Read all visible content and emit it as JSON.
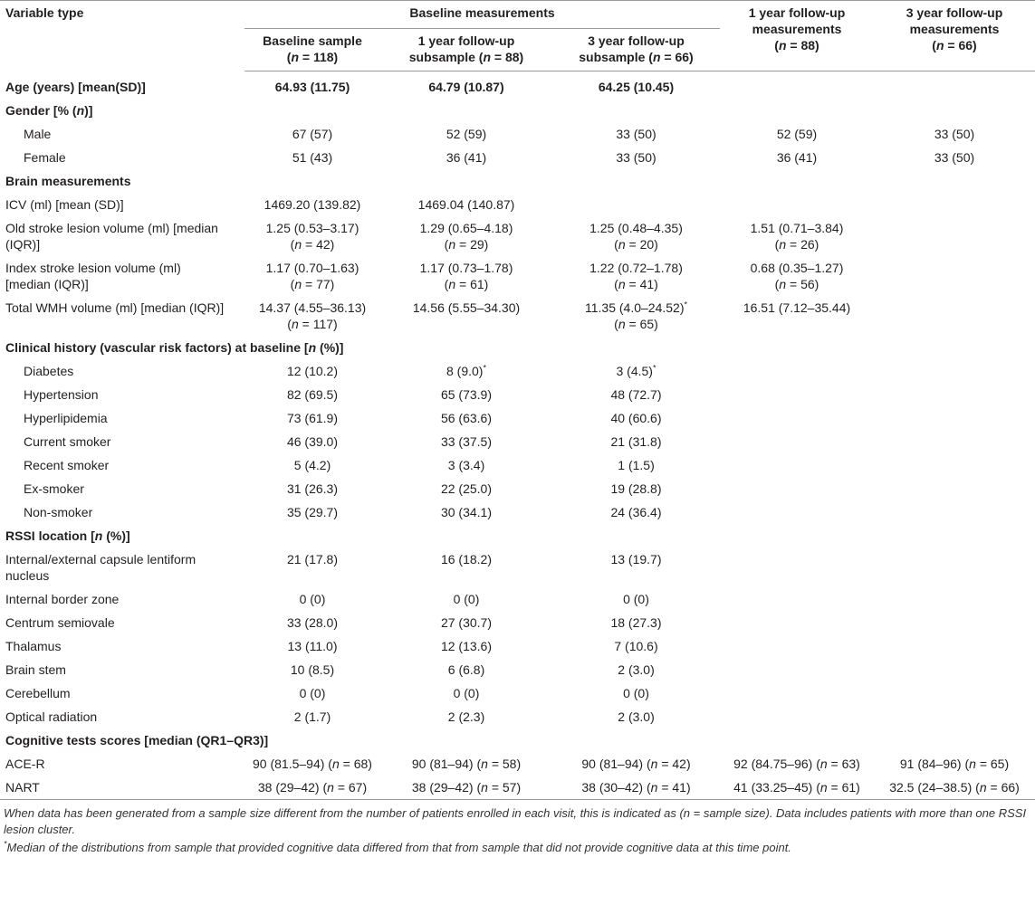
{
  "table": {
    "header": {
      "variable": "Variable type",
      "group": "Baseline measurements",
      "columns": [
        [
          "Baseline sample",
          "(n = 118)"
        ],
        [
          "1 year follow-up",
          "subsample (n = 88)"
        ],
        [
          "3 year follow-up",
          "subsample (n = 66)"
        ],
        [
          "1 year follow-up",
          "measurements",
          "(n = 88)"
        ],
        [
          "3 year follow-up",
          "measurements",
          "(n = 66)"
        ]
      ]
    },
    "sections": [
      {
        "title": "Age (years) [mean(SD)]",
        "values": [
          "64.93 (11.75)",
          "64.79 (10.87)",
          "64.25 (10.45)",
          null,
          null
        ],
        "indent": false,
        "rows": []
      },
      {
        "title": "Gender [% (n)]",
        "indent": true,
        "rows": [
          {
            "label": "Male",
            "values": [
              "67 (57)",
              "52 (59)",
              "33 (50)",
              "52 (59)",
              "33 (50)"
            ]
          },
          {
            "label": "Female",
            "values": [
              "51 (43)",
              "36 (41)",
              "33 (50)",
              "36 (41)",
              "33 (50)"
            ]
          }
        ]
      },
      {
        "title": "Brain measurements",
        "indent": false,
        "rows": [
          {
            "label": "ICV (ml) [mean (SD)]",
            "values": [
              "1469.20 (139.82)",
              "1469.04 (140.87)",
              null,
              null,
              null
            ]
          },
          {
            "label": [
              "Old stroke lesion volume (ml) [median",
              "(IQR)]"
            ],
            "values": [
              [
                "1.25 (0.53–3.17)",
                "(n = 42)"
              ],
              [
                "1.29 (0.65–4.18)",
                "(n = 29)"
              ],
              [
                "1.25 (0.48–4.35)",
                "(n = 20)"
              ],
              [
                "1.51 (0.71–3.84)",
                "(n = 26)"
              ],
              null
            ]
          },
          {
            "label": [
              "Index stroke lesion volume (ml)",
              "[median (IQR)]"
            ],
            "values": [
              [
                "1.17 (0.70–1.63)",
                "(n = 77)"
              ],
              [
                "1.17 (0.73–1.78)",
                "(n = 61)"
              ],
              [
                "1.22 (0.72–1.78)",
                "(n = 41)"
              ],
              [
                "0.68 (0.35–1.27)",
                "(n = 56)"
              ],
              null
            ]
          },
          {
            "label": "Total WMH volume (ml) [median (IQR)]",
            "values": [
              [
                "14.37 (4.55–36.13)",
                "(n = 117)"
              ],
              "14.56 (5.55–34.30)",
              [
                "11.35 (4.0–24.52)*",
                "(n = 65)"
              ],
              "16.51 (7.12–35.44)",
              null
            ]
          }
        ]
      },
      {
        "title": "Clinical history (vascular risk factors) at baseline [n (%)]",
        "indent": true,
        "rows": [
          {
            "label": "Diabetes",
            "values": [
              "12 (10.2)",
              "8 (9.0)*",
              "3 (4.5)*",
              null,
              null
            ]
          },
          {
            "label": "Hypertension",
            "values": [
              "82 (69.5)",
              "65 (73.9)",
              "48 (72.7)",
              null,
              null
            ]
          },
          {
            "label": "Hyperlipidemia",
            "values": [
              "73 (61.9)",
              "56 (63.6)",
              "40 (60.6)",
              null,
              null
            ]
          },
          {
            "label": "Current smoker",
            "values": [
              "46 (39.0)",
              "33 (37.5)",
              "21 (31.8)",
              null,
              null
            ]
          },
          {
            "label": "Recent smoker",
            "values": [
              "5 (4.2)",
              "3 (3.4)",
              "1 (1.5)",
              null,
              null
            ]
          },
          {
            "label": "Ex-smoker",
            "values": [
              "31 (26.3)",
              "22 (25.0)",
              "19 (28.8)",
              null,
              null
            ]
          },
          {
            "label": "Non-smoker",
            "values": [
              "35 (29.7)",
              "30 (34.1)",
              "24 (36.4)",
              null,
              null
            ]
          }
        ]
      },
      {
        "title": "RSSI location [n (%)]",
        "indent": false,
        "rows": [
          {
            "label": [
              "Internal/external capsule lentiform",
              "nucleus"
            ],
            "values": [
              "21 (17.8)",
              "16 (18.2)",
              "13 (19.7)",
              null,
              null
            ]
          },
          {
            "label": "Internal border zone",
            "values": [
              "0 (0)",
              "0 (0)",
              "0 (0)",
              null,
              null
            ]
          },
          {
            "label": "Centrum semiovale",
            "values": [
              "33 (28.0)",
              "27 (30.7)",
              "18 (27.3)",
              null,
              null
            ]
          },
          {
            "label": "Thalamus",
            "values": [
              "13 (11.0)",
              "12 (13.6)",
              "7 (10.6)",
              null,
              null
            ]
          },
          {
            "label": "Brain stem",
            "values": [
              "10 (8.5)",
              "6 (6.8)",
              "2 (3.0)",
              null,
              null
            ]
          },
          {
            "label": "Cerebellum",
            "values": [
              "0 (0)",
              "0 (0)",
              "0 (0)",
              null,
              null
            ]
          },
          {
            "label": "Optical radiation",
            "values": [
              "2 (1.7)",
              "2 (2.3)",
              "2 (3.0)",
              null,
              null
            ]
          }
        ]
      },
      {
        "title": "Cognitive tests scores [median (QR1–QR3)]",
        "indent": false,
        "rows": [
          {
            "label": "ACE-R",
            "values": [
              "90 (81.5–94) (n = 68)",
              "90 (81–94) (n = 58)",
              "90 (81–94) (n = 42)",
              "92 (84.75–96) (n = 63)",
              "91 (84–96) (n = 65)"
            ]
          },
          {
            "label": "NART",
            "values": [
              "38 (29–42) (n = 67)",
              "38 (29–42) (n = 57)",
              "38 (30–42) (n = 41)",
              "41 (33.25–45) (n = 61)",
              "32.5 (24–38.5) (n = 66)"
            ]
          }
        ]
      }
    ],
    "footnotes": [
      "When data has been generated from a sample size different from the number of patients enrolled in each visit, this is indicated as (n = sample size). Data includes patients with more than one RSSI lesion cluster.",
      "*Median of the distributions from sample that provided cognitive data differed from that from sample that did not provide cognitive data at this time point."
    ]
  }
}
